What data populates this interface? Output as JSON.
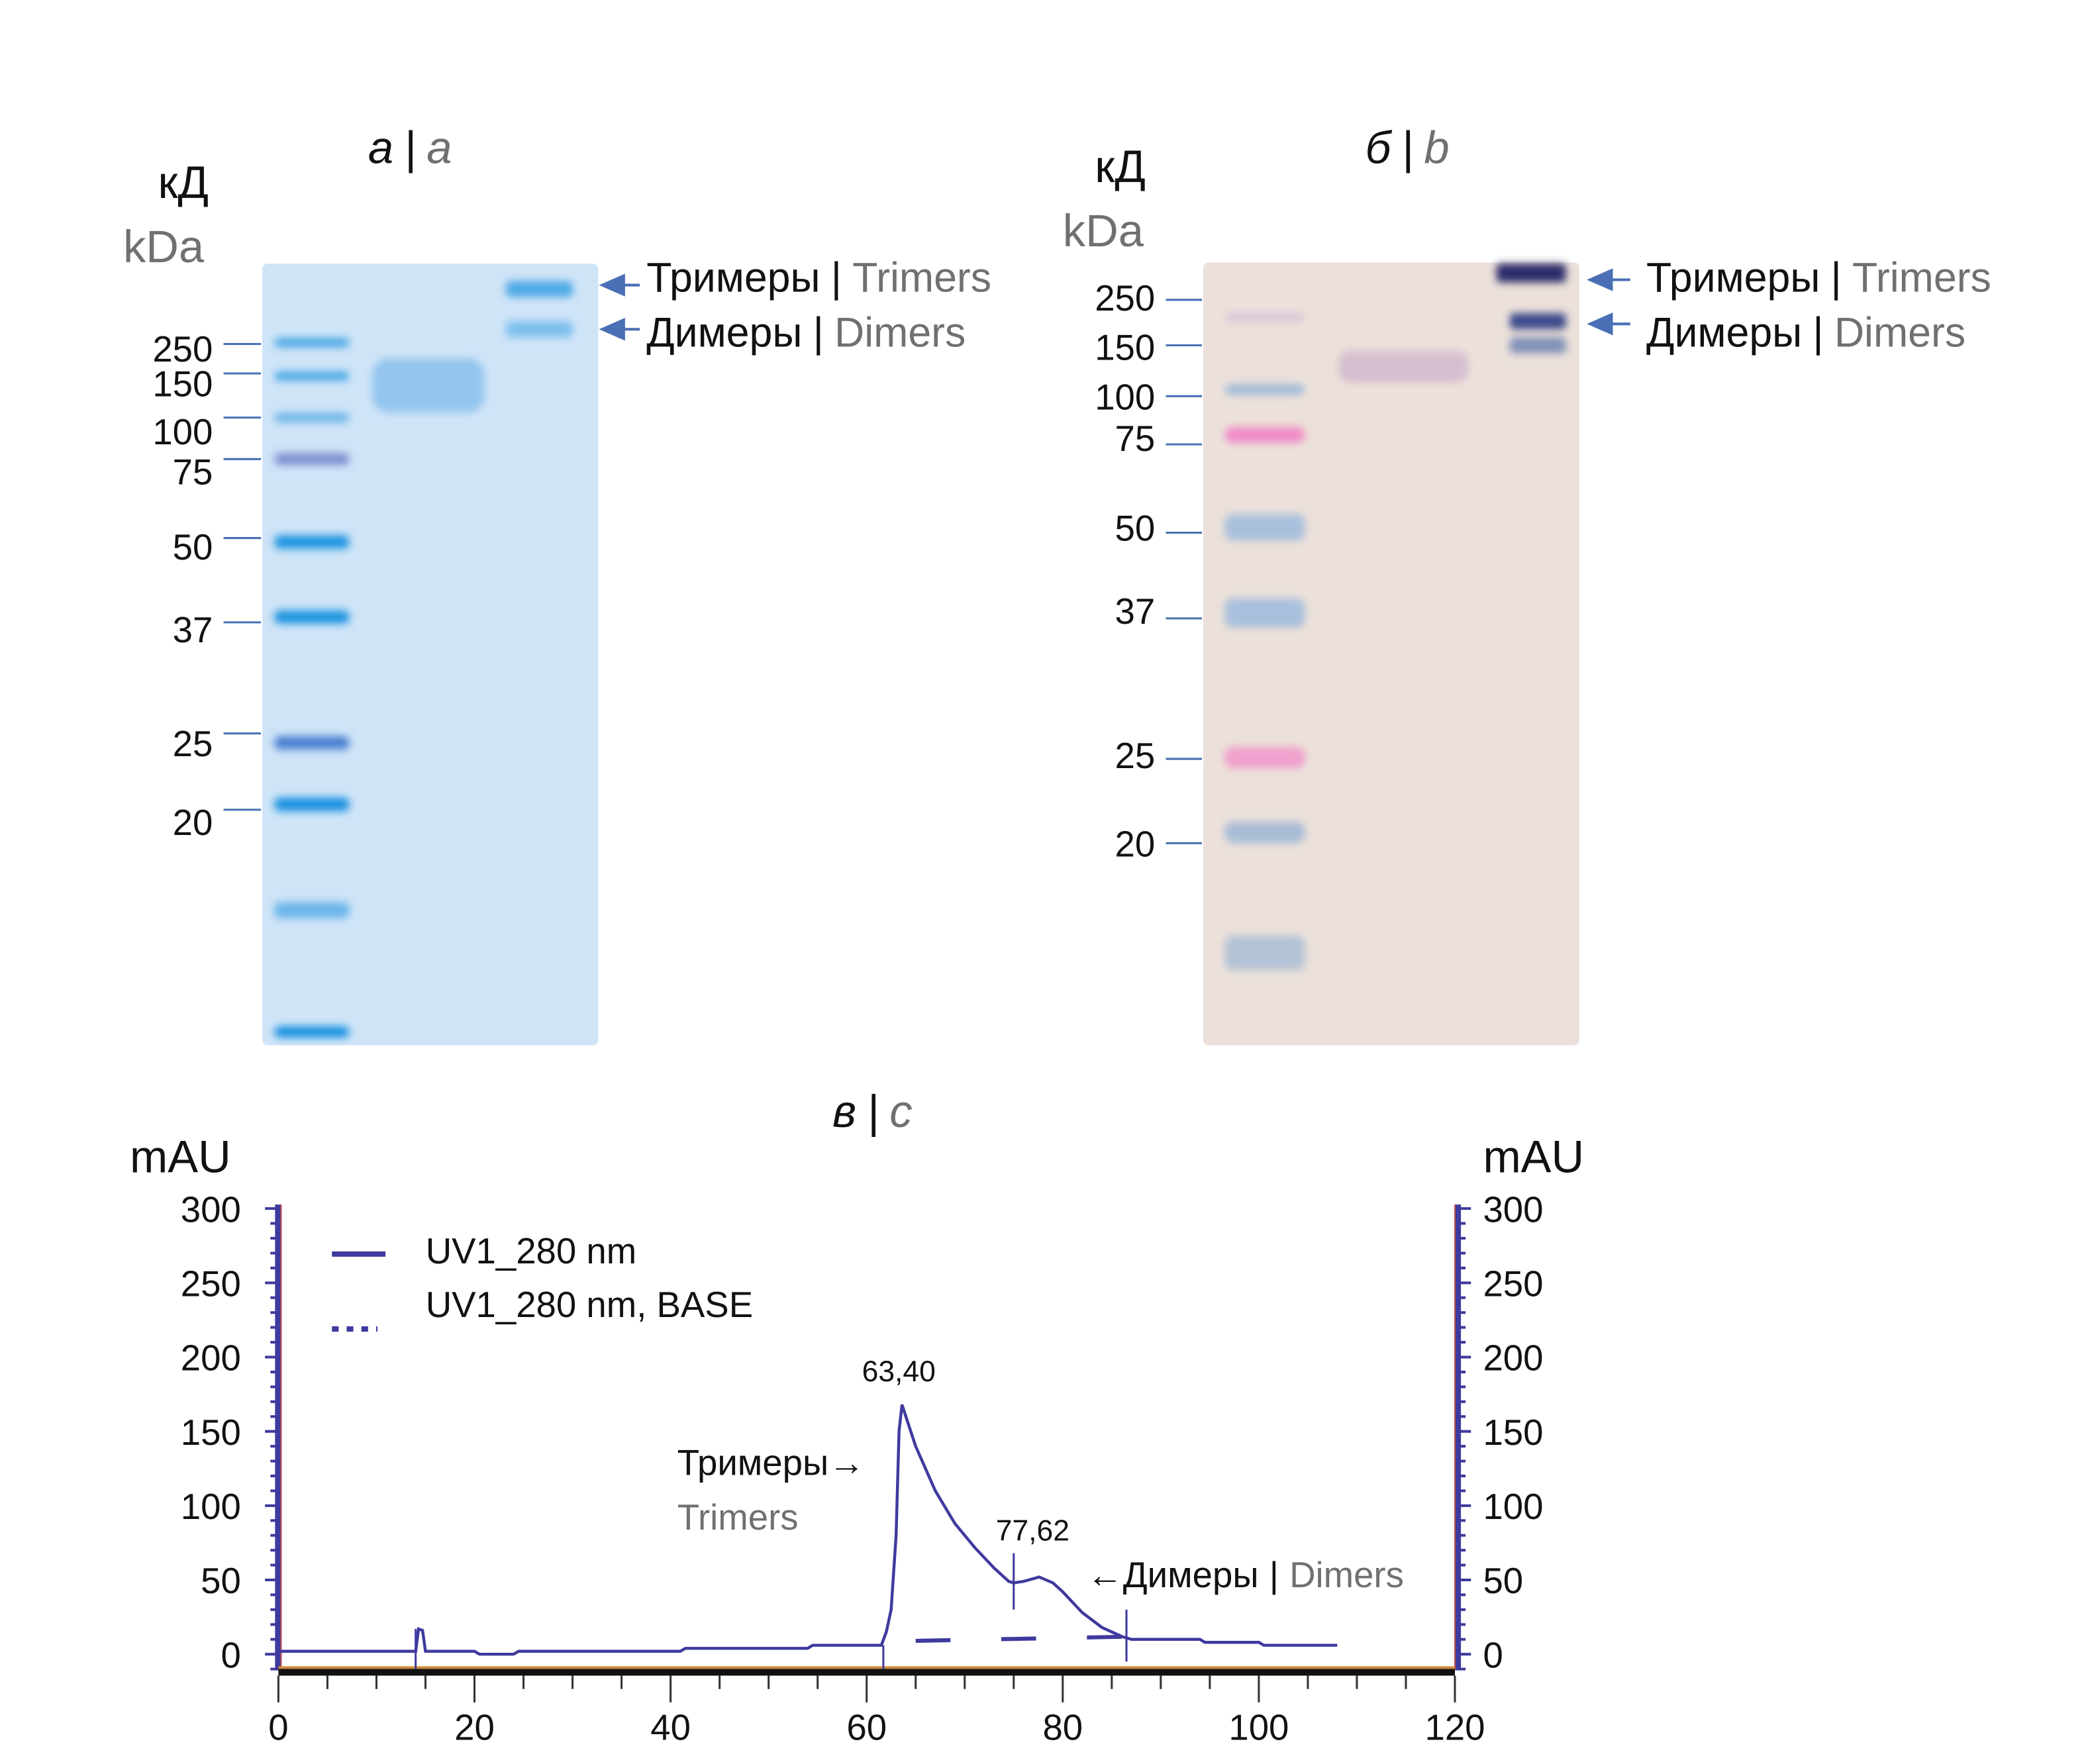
{
  "panel_a": {
    "label_ru": "а",
    "sep": "|",
    "label_en": "a",
    "unit_ru": "кД",
    "unit_en": "kDa",
    "markers": [
      "250",
      "150",
      "100",
      "75",
      "50",
      "37",
      "25",
      "20"
    ],
    "arrow_trimers_ru": "Тримеры",
    "arrow_trimers_en": "Trimers",
    "arrow_dimers_ru": "Димеры",
    "arrow_dimers_en": "Dimers",
    "gel_color": "#cfe4f7",
    "ladder_color": "#2a9be0"
  },
  "panel_b": {
    "label_ru": "б",
    "sep": "|",
    "label_en": "b",
    "unit_ru": "кД",
    "unit_en": "kDa",
    "markers": [
      "250",
      "150",
      "100",
      "75",
      "50",
      "37",
      "25",
      "20"
    ],
    "arrow_trimers_ru": "Тримеры",
    "arrow_trimers_en": "Trimers",
    "arrow_dimers_ru": "Димеры",
    "arrow_dimers_en": "Dimers",
    "gel_color": "#ece1da",
    "arrow_color": "#4a6fb5"
  },
  "panel_c": {
    "label_ru": "в",
    "sep": "|",
    "label_en": "c"
  },
  "chart_data": {
    "type": "line",
    "ylabel_left": "mAU",
    "ylabel_right": "mAU",
    "xlim": [
      0,
      120
    ],
    "ylim": [
      0,
      300
    ],
    "xticks": [
      "0",
      "20",
      "40",
      "60",
      "80",
      "100",
      "120"
    ],
    "yticks": [
      "0",
      "50",
      "100",
      "150",
      "200",
      "250",
      "300"
    ],
    "legend": {
      "position": "top-left"
    },
    "series": [
      {
        "name": "UV1_280 nm",
        "style": "solid",
        "color": "#3f3a9e",
        "x": [
          0,
          14,
          14.3,
          14.7,
          15,
          20,
          20.5,
          24,
          24.5,
          41,
          41.5,
          54,
          54.5,
          61.5,
          62,
          62.5,
          63,
          63.3,
          63.6,
          64,
          65,
          67,
          69,
          71,
          73,
          74.5,
          75,
          76,
          77.6,
          79,
          80,
          82,
          84,
          86,
          87,
          94,
          94.5,
          100,
          100.5,
          108
        ],
        "y": [
          2,
          2,
          17,
          16,
          2,
          2,
          0,
          0,
          2,
          2,
          4,
          4,
          6,
          6,
          15,
          30,
          80,
          150,
          168,
          160,
          140,
          110,
          88,
          72,
          58,
          49,
          48,
          49,
          52,
          48,
          42,
          28,
          18,
          12,
          10,
          10,
          8,
          8,
          6,
          6
        ]
      },
      {
        "name": "UV1_280 nm, BASE",
        "style": "dashed",
        "color": "#3f3a9e",
        "x": [
          65,
          88
        ],
        "y": [
          9,
          12
        ]
      }
    ],
    "annotations": [
      {
        "text": "63,40",
        "x": 63.4,
        "y": 168
      },
      {
        "text": "77,62",
        "x": 77.62,
        "y": 52
      },
      {
        "text_ru": "Тримеры→",
        "text_en": "Trimers"
      },
      {
        "text_ru": "←Димеры",
        "sep": "|",
        "text_en": "Dimers"
      }
    ],
    "fraction_marks": [
      61.7,
      75,
      86.5
    ]
  }
}
